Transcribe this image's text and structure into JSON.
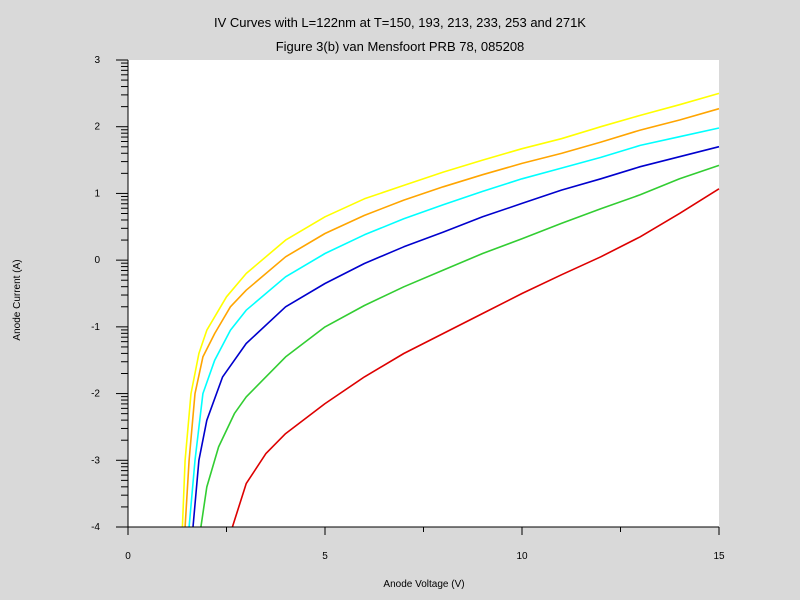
{
  "chart_data": {
    "type": "line",
    "title": "IV Curves with L=122nm at T=150, 193, 213, 233, 253 and 271K",
    "subtitle": "Figure 3(b) van Mensfoort PRB 78, 085208",
    "xlabel": "Anode Voltage (V)",
    "ylabel": "Anode Current (A)",
    "xlim": [
      0,
      15
    ],
    "ylim": [
      -4,
      3
    ],
    "xticks": [
      0,
      5,
      10,
      15
    ],
    "yticks": [
      -4,
      -3,
      -2,
      -1,
      0,
      1,
      2,
      3
    ],
    "grid": false,
    "legend": "none",
    "series": [
      {
        "color": "#ffff00",
        "x": [
          1.38,
          1.45,
          1.6,
          1.8,
          2.0,
          2.5,
          3.0,
          4.0,
          5.0,
          6.0,
          7.0,
          8.0,
          9.0,
          10.0,
          11.0,
          12.0,
          13.0,
          14.0,
          15.0
        ],
        "y": [
          -4.0,
          -3.0,
          -2.0,
          -1.4,
          -1.05,
          -0.55,
          -0.2,
          0.3,
          0.65,
          0.92,
          1.12,
          1.32,
          1.5,
          1.67,
          1.82,
          2.0,
          2.17,
          2.33,
          2.5
        ]
      },
      {
        "color": "#ffa500",
        "x": [
          1.45,
          1.55,
          1.7,
          1.9,
          2.2,
          2.6,
          3.0,
          4.0,
          5.0,
          6.0,
          7.0,
          8.0,
          9.0,
          10.0,
          11.0,
          12.0,
          13.0,
          14.0,
          15.0
        ],
        "y": [
          -4.0,
          -3.0,
          -2.0,
          -1.45,
          -1.1,
          -0.7,
          -0.45,
          0.05,
          0.4,
          0.67,
          0.9,
          1.1,
          1.28,
          1.45,
          1.6,
          1.77,
          1.95,
          2.1,
          2.27
        ]
      },
      {
        "color": "#00ffff",
        "x": [
          1.55,
          1.7,
          1.9,
          2.2,
          2.6,
          3.0,
          4.0,
          5.0,
          6.0,
          7.0,
          8.0,
          9.0,
          10.0,
          11.0,
          12.0,
          13.0,
          14.0,
          15.0
        ],
        "y": [
          -4.0,
          -3.0,
          -2.0,
          -1.5,
          -1.05,
          -0.75,
          -0.25,
          0.1,
          0.38,
          0.62,
          0.83,
          1.03,
          1.22,
          1.38,
          1.54,
          1.72,
          1.85,
          1.98
        ]
      },
      {
        "color": "#0000cd",
        "x": [
          1.65,
          1.8,
          2.0,
          2.4,
          3.0,
          4.0,
          5.0,
          6.0,
          7.0,
          8.0,
          9.0,
          10.0,
          11.0,
          12.0,
          13.0,
          14.0,
          15.0
        ],
        "y": [
          -4.0,
          -3.0,
          -2.4,
          -1.75,
          -1.25,
          -0.7,
          -0.35,
          -0.05,
          0.2,
          0.42,
          0.65,
          0.85,
          1.05,
          1.22,
          1.4,
          1.55,
          1.7
        ]
      },
      {
        "color": "#32cd32",
        "x": [
          1.85,
          2.0,
          2.3,
          2.7,
          3.0,
          4.0,
          5.0,
          6.0,
          7.0,
          8.0,
          9.0,
          10.0,
          11.0,
          12.0,
          13.0,
          14.0,
          15.0
        ],
        "y": [
          -4.0,
          -3.4,
          -2.8,
          -2.3,
          -2.05,
          -1.45,
          -1.0,
          -0.68,
          -0.4,
          -0.15,
          0.1,
          0.32,
          0.55,
          0.77,
          0.98,
          1.22,
          1.42
        ]
      },
      {
        "color": "#dd0000",
        "x": [
          2.65,
          3.0,
          3.5,
          4.0,
          5.0,
          6.0,
          7.0,
          8.0,
          9.0,
          10.0,
          11.0,
          12.0,
          13.0,
          14.0,
          15.0
        ],
        "y": [
          -4.0,
          -3.35,
          -2.9,
          -2.6,
          -2.15,
          -1.75,
          -1.4,
          -1.1,
          -0.8,
          -0.5,
          -0.22,
          0.05,
          0.35,
          0.7,
          1.07
        ]
      }
    ]
  }
}
